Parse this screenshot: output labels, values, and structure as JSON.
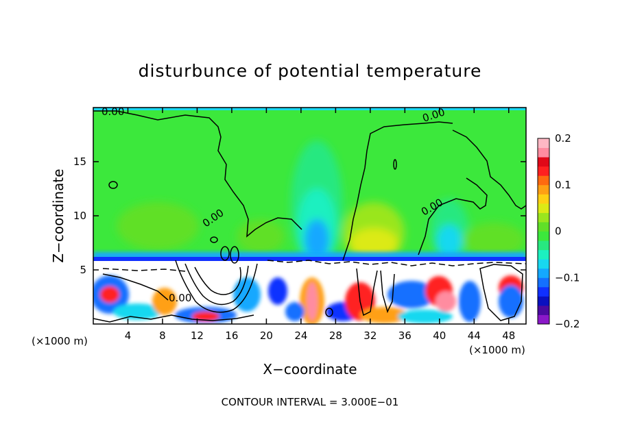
{
  "chart_data": {
    "type": "heatmap",
    "title": "disturbunce of potential temperature",
    "xlabel": "X−coordinate",
    "ylabel": "Z−coordinate",
    "x_unit_left": "(×1000 m)",
    "x_unit_right": "(×1000 m)",
    "xlim": [
      0,
      50
    ],
    "ylim": [
      0,
      20
    ],
    "x_ticks": [
      {
        "value": 4,
        "label": "4"
      },
      {
        "value": 8,
        "label": "8"
      },
      {
        "value": 12,
        "label": "12"
      },
      {
        "value": 16,
        "label": "16"
      },
      {
        "value": 20,
        "label": "20"
      },
      {
        "value": 24,
        "label": "24"
      },
      {
        "value": 28,
        "label": "28"
      },
      {
        "value": 32,
        "label": "32"
      },
      {
        "value": 36,
        "label": "36"
      },
      {
        "value": 40,
        "label": "40"
      },
      {
        "value": 44,
        "label": "44"
      },
      {
        "value": 48,
        "label": "48"
      }
    ],
    "y_ticks": [
      {
        "value": 5,
        "label": "5"
      },
      {
        "value": 10,
        "label": "10"
      },
      {
        "value": 15,
        "label": "15"
      }
    ],
    "colorbar": {
      "range": [
        -0.2,
        0.2
      ],
      "ticks": [
        {
          "value": 0.2,
          "label": "0.2"
        },
        {
          "value": 0.1,
          "label": "0.1"
        },
        {
          "value": 0,
          "label": "0"
        },
        {
          "value": -0.1,
          "label": "−0.1"
        },
        {
          "value": -0.2,
          "label": "−0.2"
        }
      ],
      "colors": [
        "#8a18c8",
        "#4a0aa0",
        "#0a10c0",
        "#1030ff",
        "#1470ff",
        "#14a8ff",
        "#18d8f0",
        "#1cf0c0",
        "#28e880",
        "#3ce83c",
        "#60e028",
        "#9ae61e",
        "#dcea16",
        "#ffd014",
        "#ffa014",
        "#ff6a10",
        "#ff2020",
        "#e00818",
        "#ff8ca0",
        "#ffb8c4"
      ]
    },
    "contour_labels": [
      "0.00",
      "0.00",
      "0.00",
      "0.00",
      "0.00"
    ],
    "footer": "CONTOUR INTERVAL = 3.000E−01",
    "regions": {
      "upper_background": 0.0,
      "upper_minima": [
        {
          "x": 26,
          "z": 8,
          "value": -0.1
        },
        {
          "x": 40.5,
          "z": 7.5,
          "value": -0.06
        }
      ],
      "upper_maxima": [
        {
          "x": 33,
          "z": 7.5,
          "value": 0.06
        }
      ],
      "stable_layer_top_z": 5.8
    }
  }
}
